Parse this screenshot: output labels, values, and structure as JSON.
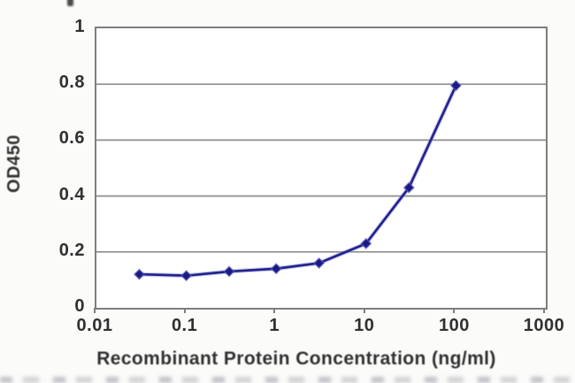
{
  "chart_data": {
    "type": "line",
    "x_scale": "log",
    "x": [
      0.03,
      0.1,
      0.3,
      1,
      3,
      10,
      30,
      100
    ],
    "series": [
      {
        "name": "OD450",
        "values": [
          0.12,
          0.115,
          0.13,
          0.14,
          0.16,
          0.23,
          0.43,
          0.795
        ],
        "color": "#22228f",
        "marker": "diamond"
      }
    ],
    "title": "",
    "xlabel": "Recombinant Protein Concentration (ng/ml)",
    "ylabel": "OD450",
    "xlim": [
      0.01,
      1000
    ],
    "ylim": [
      0,
      1
    ],
    "x_tick_values": [
      0.01,
      0.1,
      1,
      10,
      100,
      1000
    ],
    "x_tick_labels": [
      "0.01",
      "0.1",
      "1",
      "10",
      "100",
      "1000"
    ],
    "y_tick_values": [
      1,
      0.8,
      0.6,
      0.4,
      0.2,
      0
    ],
    "y_tick_labels": [
      "1",
      "0.8",
      "0.6",
      "0.4",
      "0.2",
      "0"
    ],
    "grid": "horizontal-only",
    "legend_position": "none",
    "colors": {
      "grid": "#8d8d8d",
      "frame": "#7e7e7e",
      "text": "#303030",
      "plot_bg": "#ffffff",
      "line": "#22228f",
      "line_halo": "#9494d2",
      "marker_fill": "#1a1a85",
      "marker_edge": "#5c5cba"
    }
  }
}
